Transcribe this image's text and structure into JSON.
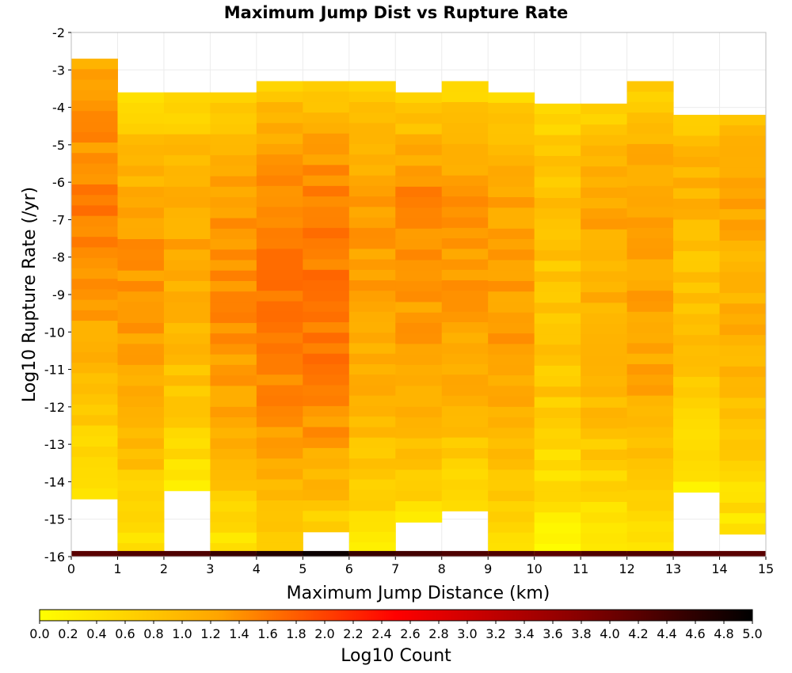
{
  "chart_data": {
    "type": "heatmap",
    "title": "Maximum Jump Dist vs Rupture Rate",
    "xlabel": "Maximum Jump Distance (km)",
    "ylabel": "Log10 Rupture Rate (/yr)",
    "xlim": [
      0,
      15
    ],
    "ylim": [
      -16,
      -2
    ],
    "x_ticks": [
      0,
      1,
      2,
      3,
      4,
      5,
      6,
      7,
      8,
      9,
      10,
      11,
      12,
      13,
      14,
      15
    ],
    "y_ticks": [
      -16,
      -15,
      -14,
      -13,
      -12,
      -11,
      -10,
      -9,
      -8,
      -7,
      -6,
      -5,
      -4,
      -3,
      -2
    ],
    "x_bin_width": 1,
    "y_bin_width": 0.28,
    "grid": true,
    "colorbar": {
      "label": "Log10 Count",
      "min": 0.0,
      "max": 5.0,
      "tick_labels": [
        "0.0",
        "0.2",
        "0.4",
        "0.6",
        "0.8",
        "1.0",
        "1.2",
        "1.4",
        "1.6",
        "1.8",
        "2.0",
        "2.2",
        "2.4",
        "2.6",
        "2.8",
        "3.0",
        "3.2",
        "3.4",
        "3.6",
        "3.8",
        "4.0",
        "4.2",
        "4.4",
        "4.6",
        "4.8",
        "5.0"
      ],
      "colors": [
        "#ffff00",
        "#ffa500",
        "#ff0000",
        "#8b0000",
        "#000000"
      ],
      "placement": "bottom"
    },
    "columns": [
      {
        "x": 0.5,
        "rate_range": [
          -14.5,
          -2.7
        ],
        "counts": [
          1.1,
          1.3,
          1.5,
          1.6,
          1.4,
          1.2,
          0.9,
          0.6,
          0.3
        ],
        "floor_count": 4.2
      },
      {
        "x": 1.5,
        "rate_range": [
          -16.0,
          -3.6
        ],
        "counts": [
          0.5,
          0.9,
          1.2,
          1.4,
          1.3,
          1.2,
          1.0,
          0.6,
          0.3
        ],
        "floor_count": 4.3
      },
      {
        "x": 2.5,
        "rate_range": [
          -14.5,
          -3.6
        ],
        "counts": [
          0.5,
          0.9,
          1.1,
          1.2,
          1.1,
          1.0,
          0.8,
          0.5,
          0.2
        ],
        "floor_count": 4.3
      },
      {
        "x": 3.5,
        "rate_range": [
          -16.0,
          -3.6
        ],
        "counts": [
          0.6,
          1.1,
          1.3,
          1.4,
          1.4,
          1.3,
          1.1,
          0.7,
          0.3
        ],
        "floor_count": 4.5
      },
      {
        "x": 4.5,
        "rate_range": [
          -16.0,
          -3.3
        ],
        "counts": [
          0.7,
          1.2,
          1.5,
          1.6,
          1.6,
          1.5,
          1.3,
          0.9,
          0.5
        ],
        "floor_count": 4.7
      },
      {
        "x": 5.5,
        "rate_range": [
          -15.6,
          -3.3
        ],
        "counts": [
          0.7,
          1.2,
          1.5,
          1.6,
          1.6,
          1.6,
          1.4,
          1.0,
          0.5
        ],
        "floor_count": 4.9
      },
      {
        "x": 6.5,
        "rate_range": [
          -16.0,
          -3.3
        ],
        "counts": [
          0.6,
          1.1,
          1.3,
          1.3,
          1.2,
          1.1,
          0.9,
          0.6,
          0.3
        ],
        "floor_count": 4.5
      },
      {
        "x": 7.5,
        "rate_range": [
          -15.3,
          -3.6
        ],
        "counts": [
          0.6,
          1.1,
          1.5,
          1.4,
          1.3,
          1.2,
          1.0,
          0.7,
          0.3
        ],
        "floor_count": 4.4
      },
      {
        "x": 8.5,
        "rate_range": [
          -15.0,
          -3.3
        ],
        "counts": [
          0.5,
          1.0,
          1.3,
          1.3,
          1.3,
          1.2,
          1.0,
          0.6,
          0.3
        ],
        "floor_count": 4.3
      },
      {
        "x": 9.5,
        "rate_range": [
          -16.0,
          -3.6
        ],
        "counts": [
          0.6,
          1.0,
          1.2,
          1.3,
          1.3,
          1.2,
          1.0,
          0.7,
          0.3
        ],
        "floor_count": 4.3
      },
      {
        "x": 10.5,
        "rate_range": [
          -16.0,
          -3.9
        ],
        "counts": [
          0.5,
          0.8,
          0.9,
          0.8,
          0.8,
          0.8,
          0.6,
          0.4,
          0.1
        ],
        "floor_count": 4.2
      },
      {
        "x": 11.5,
        "rate_range": [
          -16.0,
          -3.9
        ],
        "counts": [
          0.5,
          1.0,
          1.2,
          1.1,
          1.1,
          1.0,
          0.8,
          0.5,
          0.2
        ],
        "floor_count": 4.3
      },
      {
        "x": 12.5,
        "rate_range": [
          -16.0,
          -3.3
        ],
        "counts": [
          0.6,
          1.1,
          1.3,
          1.2,
          1.2,
          1.2,
          1.0,
          0.6,
          0.4
        ],
        "floor_count": 4.3
      },
      {
        "x": 13.5,
        "rate_range": [
          -14.5,
          -4.2
        ],
        "counts": [
          0.6,
          1.1,
          1.0,
          0.8,
          0.9,
          0.8,
          0.6,
          0.4,
          0.2
        ],
        "floor_count": 4.2
      },
      {
        "x": 14.5,
        "rate_range": [
          -15.6,
          -4.2
        ],
        "counts": [
          0.9,
          1.2,
          1.2,
          1.0,
          1.2,
          1.0,
          0.8,
          0.5,
          0.3
        ],
        "floor_count": 4.2
      }
    ]
  }
}
